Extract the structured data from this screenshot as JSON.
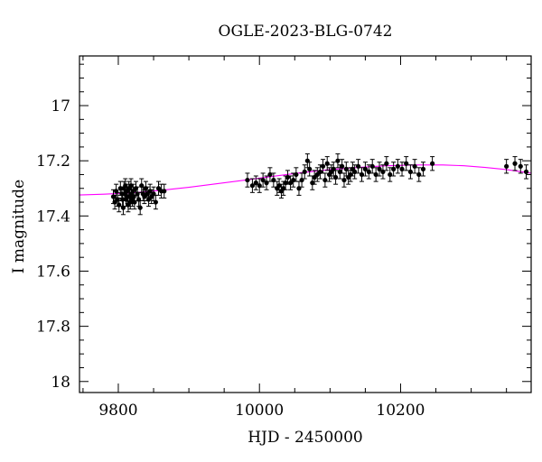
{
  "chart_data": {
    "type": "scatter",
    "title": "OGLE-2023-BLG-0742",
    "xlabel": "HJD - 2450000",
    "ylabel": "I magnitude",
    "xlim": [
      9745,
      10385
    ],
    "ylim": [
      18.04,
      16.82
    ],
    "y_inverted": true,
    "grid": false,
    "legend": "none",
    "x_major_ticks": [
      9800,
      10000,
      10200
    ],
    "x_tick_labels": [
      "9800",
      "10000",
      "10200"
    ],
    "y_major_ticks": [
      17,
      17.2,
      17.4,
      17.6,
      17.8,
      18
    ],
    "y_tick_labels": [
      "17",
      "17.2",
      "17.4",
      "17.6",
      "17.8",
      "18"
    ],
    "colors": {
      "data": "#000000",
      "model": "#ff00ff"
    },
    "series": [
      {
        "kind": "points-with-errorbars",
        "x": [
          9793,
          9795,
          9797,
          9799,
          9801,
          9803,
          9805,
          9806,
          9807,
          9808,
          9809,
          9810,
          9811,
          9812,
          9813,
          9814,
          9815,
          9816,
          9817,
          9818,
          9819,
          9820,
          9821,
          9822,
          9823,
          9825,
          9827,
          9829,
          9831,
          9833,
          9835,
          9837,
          9839,
          9841,
          9843,
          9845,
          9847,
          9850,
          9853,
          9857,
          9861,
          9865,
          9983,
          9990,
          9995,
          10000,
          10005,
          10010,
          10015,
          10020,
          10025,
          10028,
          10031,
          10034,
          10037,
          10040,
          10044,
          10048,
          10052,
          10056,
          10060,
          10064,
          10068,
          10071,
          10075,
          10078,
          10082,
          10086,
          10090,
          10093,
          10096,
          10099,
          10102,
          10105,
          10108,
          10111,
          10114,
          10117,
          10120,
          10123,
          10126,
          10129,
          10132,
          10135,
          10140,
          10145,
          10150,
          10155,
          10160,
          10165,
          10170,
          10175,
          10180,
          10185,
          10190,
          10196,
          10202,
          10208,
          10214,
          10220,
          10226,
          10232,
          10245,
          10350,
          10362,
          10370,
          10378
        ],
        "y": [
          17.33,
          17.35,
          17.31,
          17.34,
          17.36,
          17.3,
          17.32,
          17.34,
          17.37,
          17.3,
          17.32,
          17.29,
          17.34,
          17.31,
          17.33,
          17.36,
          17.3,
          17.33,
          17.35,
          17.29,
          17.32,
          17.34,
          17.31,
          17.33,
          17.35,
          17.3,
          17.32,
          17.34,
          17.37,
          17.29,
          17.32,
          17.33,
          17.3,
          17.32,
          17.34,
          17.31,
          17.33,
          17.32,
          17.35,
          17.3,
          17.31,
          17.31,
          17.27,
          17.29,
          17.28,
          17.29,
          17.27,
          17.28,
          17.25,
          17.27,
          17.3,
          17.29,
          17.31,
          17.3,
          17.28,
          17.26,
          17.28,
          17.27,
          17.25,
          17.3,
          17.27,
          17.24,
          17.2,
          17.23,
          17.28,
          17.26,
          17.25,
          17.24,
          17.22,
          17.27,
          17.21,
          17.25,
          17.24,
          17.23,
          17.26,
          17.2,
          17.24,
          17.22,
          17.27,
          17.23,
          17.26,
          17.25,
          17.23,
          17.24,
          17.22,
          17.25,
          17.23,
          17.24,
          17.22,
          17.25,
          17.23,
          17.24,
          17.21,
          17.25,
          17.23,
          17.22,
          17.23,
          17.21,
          17.24,
          17.22,
          17.25,
          17.23,
          17.21,
          17.22,
          17.21,
          17.22,
          17.24
        ],
        "err": 0.025
      },
      {
        "kind": "model-curve",
        "x": [
          9745,
          9780,
          9820,
          9860,
          9900,
          9940,
          9980,
          10020,
          10060,
          10100,
          10140,
          10180,
          10220,
          10260,
          10290,
          10320,
          10350,
          10385
        ],
        "y": [
          17.324,
          17.321,
          17.316,
          17.307,
          17.296,
          17.283,
          17.27,
          17.256,
          17.243,
          17.232,
          17.224,
          17.218,
          17.215,
          17.215,
          17.218,
          17.224,
          17.232,
          17.245
        ]
      }
    ]
  }
}
